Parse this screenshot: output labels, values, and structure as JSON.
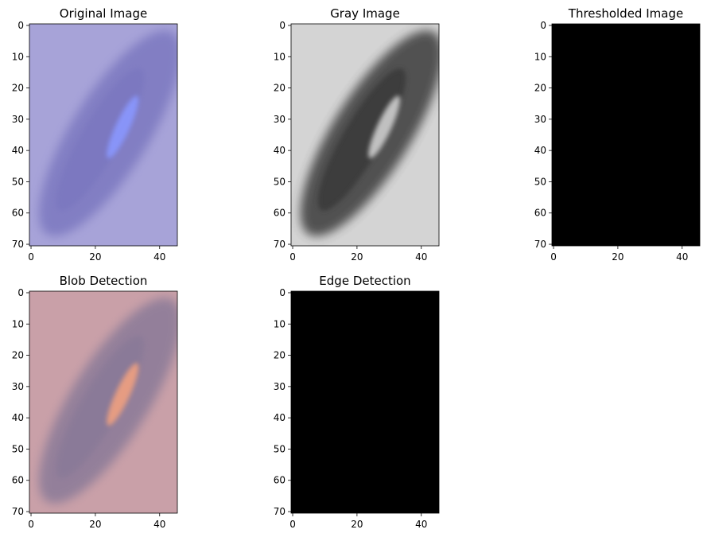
{
  "figure": {
    "panels": [
      {
        "id": "original",
        "title": "Original Image",
        "kind": "image",
        "base_color": "#a7a3d8",
        "blob_color": "#7b78c0",
        "highlight_color": "#8a98ff",
        "x_ticks": [
          0,
          20,
          40
        ],
        "y_ticks": [
          0,
          10,
          20,
          30,
          40,
          50,
          60,
          70
        ]
      },
      {
        "id": "gray",
        "title": "Gray Image",
        "kind": "image",
        "base_color": "#d4d4d4",
        "blob_color": "#3a3a3a",
        "highlight_color": "#cfcfcf",
        "x_ticks": [
          0,
          20,
          40
        ],
        "y_ticks": [
          0,
          10,
          20,
          30,
          40,
          50,
          60,
          70
        ]
      },
      {
        "id": "threshold",
        "title": "Thresholded Image",
        "kind": "black",
        "base_color": "#000000",
        "x_ticks": [
          0,
          20,
          40
        ],
        "y_ticks": [
          0,
          10,
          20,
          30,
          40,
          50,
          60,
          70
        ]
      },
      {
        "id": "blob",
        "title": "Blob Detection",
        "kind": "image",
        "base_color": "#c9a0a8",
        "blob_color": "#8a7a98",
        "highlight_color": "#f0a080",
        "x_ticks": [
          0,
          20,
          40
        ],
        "y_ticks": [
          0,
          10,
          20,
          30,
          40,
          50,
          60,
          70
        ]
      },
      {
        "id": "edge",
        "title": "Edge Detection",
        "kind": "black",
        "base_color": "#000000",
        "x_ticks": [
          0,
          20,
          40
        ],
        "y_ticks": [
          0,
          10,
          20,
          30,
          40,
          50,
          60,
          70
        ]
      }
    ]
  }
}
